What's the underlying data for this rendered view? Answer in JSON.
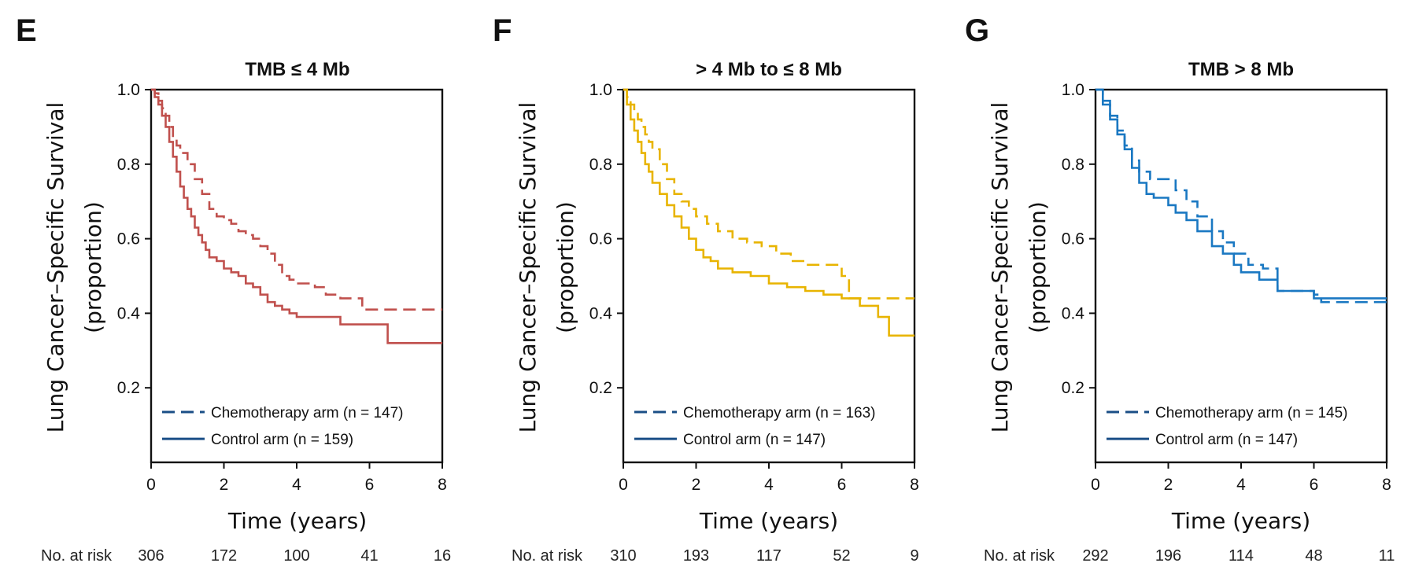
{
  "risk_label": "No. at risk",
  "legend_colors": {
    "chemo": "#1a4e86",
    "control": "#1a4e86"
  },
  "chart_data": [
    {
      "type": "line",
      "panel": "E",
      "title": "TMB ≤ 4 Mb",
      "ylabel_line1": "Lung Cancer–Specific Survival",
      "ylabel_line2": "(proportion)",
      "xlabel": "Time (years)",
      "xlim": [
        0,
        8
      ],
      "ylim": [
        0,
        1.0
      ],
      "xticks": [
        "0",
        "2",
        "4",
        "6",
        "8"
      ],
      "yticks": [
        "0.2",
        "0.4",
        "0.6",
        "0.8",
        "1.0"
      ],
      "color": "#c0504d",
      "legend": [
        "Chemotherapy arm (n = 147)",
        "Control arm (n = 159)"
      ],
      "risk_numbers": [
        "306",
        "172",
        "100",
        "41",
        "16"
      ],
      "series": [
        {
          "name": "Chemotherapy arm",
          "style": "dashed",
          "x": [
            0,
            0.1,
            0.2,
            0.3,
            0.4,
            0.5,
            0.6,
            0.7,
            0.8,
            1.0,
            1.2,
            1.4,
            1.6,
            1.8,
            2.0,
            2.2,
            2.4,
            2.6,
            2.8,
            3.0,
            3.2,
            3.4,
            3.6,
            3.8,
            4.0,
            4.5,
            4.8,
            5.2,
            5.8,
            8.0
          ],
          "y": [
            1.0,
            0.99,
            0.97,
            0.95,
            0.93,
            0.9,
            0.87,
            0.85,
            0.83,
            0.8,
            0.76,
            0.72,
            0.68,
            0.66,
            0.65,
            0.64,
            0.62,
            0.61,
            0.6,
            0.58,
            0.56,
            0.53,
            0.5,
            0.49,
            0.48,
            0.47,
            0.45,
            0.44,
            0.41,
            0.41
          ]
        },
        {
          "name": "Control arm",
          "style": "solid",
          "x": [
            0,
            0.1,
            0.2,
            0.3,
            0.4,
            0.5,
            0.6,
            0.7,
            0.8,
            0.9,
            1.0,
            1.1,
            1.2,
            1.3,
            1.4,
            1.5,
            1.6,
            1.8,
            2.0,
            2.2,
            2.4,
            2.6,
            2.8,
            3.0,
            3.2,
            3.4,
            3.6,
            3.8,
            4.0,
            5.0,
            5.2,
            6.5,
            8.0
          ],
          "y": [
            1.0,
            0.98,
            0.96,
            0.93,
            0.9,
            0.86,
            0.82,
            0.78,
            0.74,
            0.71,
            0.68,
            0.66,
            0.63,
            0.61,
            0.59,
            0.57,
            0.55,
            0.54,
            0.52,
            0.51,
            0.5,
            0.48,
            0.47,
            0.45,
            0.43,
            0.42,
            0.41,
            0.4,
            0.39,
            0.39,
            0.37,
            0.32,
            0.32
          ]
        }
      ]
    },
    {
      "type": "line",
      "panel": "F",
      "title": "> 4 Mb to ≤ 8 Mb",
      "ylabel_line1": "Lung Cancer–Specific Survival",
      "ylabel_line2": "(proportion)",
      "xlabel": "Time (years)",
      "xlim": [
        0,
        8
      ],
      "ylim": [
        0,
        1.0
      ],
      "xticks": [
        "0",
        "2",
        "4",
        "6",
        "8"
      ],
      "yticks": [
        "0.2",
        "0.4",
        "0.6",
        "0.8",
        "1.0"
      ],
      "color": "#e8b400",
      "legend": [
        "Chemotherapy arm (n = 163)",
        "Control arm (n = 147)"
      ],
      "risk_numbers": [
        "310",
        "193",
        "117",
        "52",
        "9"
      ],
      "series": [
        {
          "name": "Chemotherapy arm",
          "style": "dashed",
          "x": [
            0,
            0.1,
            0.2,
            0.3,
            0.4,
            0.5,
            0.6,
            0.7,
            0.8,
            1.0,
            1.2,
            1.4,
            1.6,
            1.8,
            2.0,
            2.3,
            2.6,
            3.0,
            3.4,
            3.8,
            4.2,
            4.6,
            5.0,
            5.6,
            6.0,
            6.2,
            8.0
          ],
          "y": [
            1.0,
            0.98,
            0.96,
            0.94,
            0.92,
            0.9,
            0.88,
            0.86,
            0.84,
            0.8,
            0.76,
            0.72,
            0.7,
            0.68,
            0.66,
            0.64,
            0.62,
            0.6,
            0.59,
            0.58,
            0.56,
            0.54,
            0.53,
            0.53,
            0.5,
            0.44,
            0.44
          ]
        },
        {
          "name": "Control arm",
          "style": "solid",
          "x": [
            0,
            0.1,
            0.2,
            0.3,
            0.4,
            0.5,
            0.6,
            0.7,
            0.8,
            1.0,
            1.2,
            1.4,
            1.6,
            1.8,
            2.0,
            2.2,
            2.4,
            2.6,
            3.0,
            3.5,
            4.0,
            4.5,
            5.0,
            5.5,
            6.0,
            6.5,
            7.0,
            7.3,
            8.0
          ],
          "y": [
            1.0,
            0.96,
            0.92,
            0.89,
            0.86,
            0.83,
            0.8,
            0.78,
            0.75,
            0.72,
            0.69,
            0.66,
            0.63,
            0.6,
            0.57,
            0.55,
            0.54,
            0.52,
            0.51,
            0.5,
            0.48,
            0.47,
            0.46,
            0.45,
            0.44,
            0.42,
            0.39,
            0.34,
            0.34
          ]
        }
      ]
    },
    {
      "type": "line",
      "panel": "G",
      "title": "TMB > 8 Mb",
      "ylabel_line1": "Lung Cancer–Specific Survival",
      "ylabel_line2": "(proportion)",
      "xlabel": "Time (years)",
      "xlim": [
        0,
        8
      ],
      "ylim": [
        0,
        1.0
      ],
      "xticks": [
        "0",
        "2",
        "4",
        "6",
        "8"
      ],
      "yticks": [
        "0.2",
        "0.4",
        "0.6",
        "0.8",
        "1.0"
      ],
      "color": "#1a78c2",
      "legend": [
        "Chemotherapy arm (n = 145)",
        "Control arm (n = 147)"
      ],
      "risk_numbers": [
        "292",
        "196",
        "114",
        "48",
        "11"
      ],
      "series": [
        {
          "name": "Chemotherapy arm",
          "style": "dashed",
          "x": [
            0,
            0.2,
            0.4,
            0.6,
            0.8,
            1.0,
            1.2,
            1.5,
            1.8,
            2.2,
            2.5,
            2.8,
            3.2,
            3.5,
            3.8,
            4.2,
            4.6,
            5.0,
            5.5,
            6.0,
            6.2,
            7.0,
            8.0
          ],
          "y": [
            1.0,
            0.97,
            0.93,
            0.89,
            0.85,
            0.81,
            0.78,
            0.76,
            0.76,
            0.73,
            0.7,
            0.66,
            0.62,
            0.59,
            0.56,
            0.53,
            0.52,
            0.46,
            0.46,
            0.45,
            0.43,
            0.43,
            0.43
          ]
        },
        {
          "name": "Control arm",
          "style": "solid",
          "x": [
            0,
            0.2,
            0.4,
            0.6,
            0.8,
            1.0,
            1.2,
            1.4,
            1.6,
            2.0,
            2.2,
            2.5,
            2.8,
            3.2,
            3.5,
            3.8,
            4.0,
            4.5,
            5.0,
            6.0,
            8.0
          ],
          "y": [
            1.0,
            0.96,
            0.92,
            0.88,
            0.84,
            0.79,
            0.75,
            0.72,
            0.71,
            0.69,
            0.67,
            0.65,
            0.62,
            0.58,
            0.56,
            0.53,
            0.51,
            0.49,
            0.46,
            0.44,
            0.44
          ]
        }
      ]
    }
  ]
}
